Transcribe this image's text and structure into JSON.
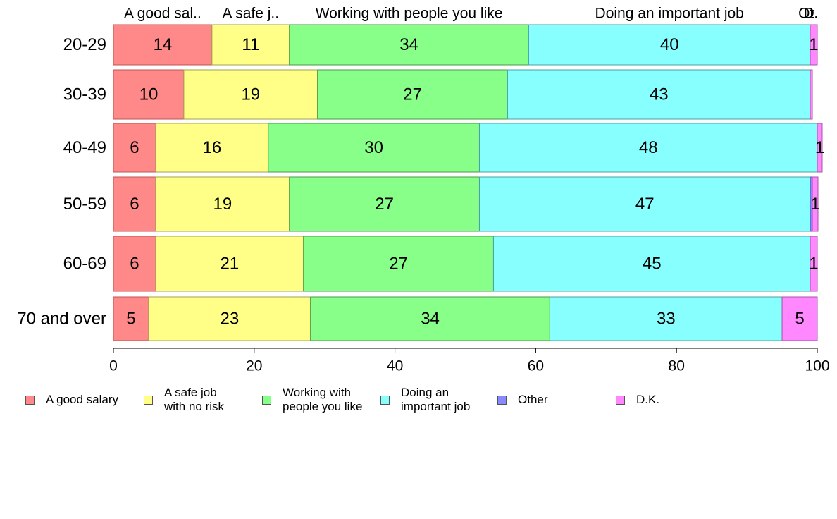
{
  "chart_data": {
    "type": "bar",
    "orientation": "horizontal",
    "stacked": true,
    "categories": [
      "20-29",
      "30-39",
      "40-49",
      "50-59",
      "60-69",
      "70 and over"
    ],
    "xlim": [
      0,
      100
    ],
    "xticks": [
      "0",
      "20",
      "40",
      "60",
      "80",
      "100"
    ],
    "top_labels": [
      "A good sal..",
      "A safe j..",
      "Working with people you like",
      "Doing an important job",
      "Ot..",
      "D.."
    ],
    "series": [
      {
        "name": "A good salary",
        "legend_label": "A good salary",
        "color": "#ff8888",
        "values": [
          14,
          10,
          6,
          6,
          6,
          5
        ],
        "labels": [
          "14",
          "10",
          "6",
          "6",
          "6",
          "5"
        ]
      },
      {
        "name": "A safe job with no risk",
        "legend_label": "A safe job\nwith no risk",
        "color": "#ffff88",
        "values": [
          11,
          19,
          16,
          19,
          21,
          23
        ],
        "labels": [
          "11",
          "19",
          "16",
          "19",
          "21",
          "23"
        ]
      },
      {
        "name": "Working with people you like",
        "legend_label": "Working with\npeople you like",
        "color": "#88ff88",
        "values": [
          34,
          27,
          30,
          27,
          27,
          34
        ],
        "labels": [
          "34",
          "27",
          "30",
          "27",
          "27",
          "34"
        ]
      },
      {
        "name": "Doing an important job",
        "legend_label": "Doing an\nimportant job",
        "color": "#88ffff",
        "values": [
          40,
          43,
          48,
          47,
          45,
          33
        ],
        "labels": [
          "40",
          "43",
          "48",
          "47",
          "45",
          "33"
        ]
      },
      {
        "name": "Other",
        "legend_label": "Other",
        "color": "#8888ff",
        "values": [
          0,
          0,
          0,
          0.3,
          0,
          0
        ],
        "labels": [
          "",
          "",
          "",
          "",
          "",
          ""
        ]
      },
      {
        "name": "D.K.",
        "legend_label": "D.K.",
        "color": "#ff88ff",
        "values": [
          1,
          0.3,
          0.7,
          0.8,
          1,
          5
        ],
        "labels": [
          "1",
          "",
          "1",
          "1",
          "1",
          "5"
        ]
      }
    ],
    "legend_position": "bottom",
    "grid": false
  }
}
